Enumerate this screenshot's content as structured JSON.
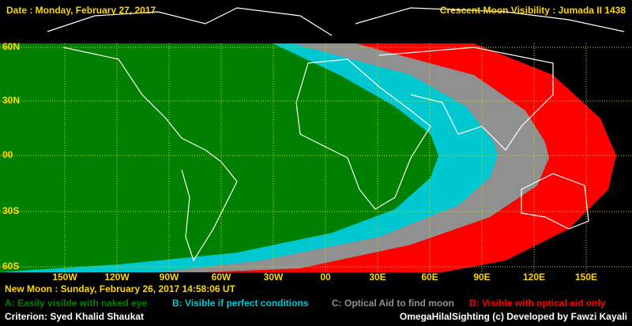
{
  "header": {
    "date": "Date : Monday, February 27, 2017",
    "title": "Crescent Moon Visibility : Jumada II  1438"
  },
  "map": {
    "lat_labels": [
      "60N",
      "30N",
      "00",
      "30S",
      "60S"
    ],
    "lon_labels": [
      "150W",
      "120W",
      "90W",
      "60W",
      "30W",
      "00",
      "30E",
      "60E",
      "90E",
      "120E",
      "150E"
    ]
  },
  "footer": {
    "new_moon": "New Moon : Sunday, February 26, 2017  14:58:06  UT",
    "legend": [
      {
        "label": "A: Easily visible with naked eye",
        "color": "#008000"
      },
      {
        "label": "B: Visible if perfect conditions",
        "color": "#00c8d0"
      },
      {
        "label": "C: Optical Aid to find moon",
        "color": "#909090"
      },
      {
        "label": "D: Visible with optical aid only",
        "color": "#ff0000"
      }
    ],
    "criterion": "Criterion: Syed Khalid Shaukat",
    "credit": "OmegaHilalSighting  (c)  Developed by Fawzi Kayali"
  }
}
